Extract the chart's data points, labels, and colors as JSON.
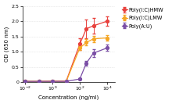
{
  "series": {
    "Poly(I:C)HMW": {
      "color": "#e8413c",
      "x": [
        0.01,
        0.1,
        1,
        10,
        100,
        300,
        1000,
        10000
      ],
      "y": [
        0.02,
        0.02,
        0.03,
        0.03,
        1.25,
        1.75,
        1.85,
        2.0
      ],
      "yerr": [
        0.01,
        0.01,
        0.01,
        0.01,
        0.2,
        0.3,
        0.25,
        0.15
      ]
    },
    "Poly(I:C)LMW": {
      "color": "#f5a623",
      "x": [
        0.01,
        0.1,
        1,
        10,
        100,
        300,
        1000,
        10000
      ],
      "y": [
        0.02,
        0.02,
        0.02,
        0.02,
        1.12,
        1.3,
        1.42,
        1.45
      ],
      "yerr": [
        0.01,
        0.01,
        0.01,
        0.01,
        0.08,
        0.1,
        0.1,
        0.1
      ]
    },
    "Poly(A:U)": {
      "color": "#7b4fa6",
      "x": [
        0.01,
        0.1,
        1,
        10,
        100,
        300,
        1000,
        10000
      ],
      "y": [
        0.02,
        0.02,
        0.02,
        0.02,
        0.1,
        0.62,
        0.95,
        1.12
      ],
      "yerr": [
        0.01,
        0.01,
        0.01,
        0.01,
        0.02,
        0.08,
        0.12,
        0.1
      ]
    }
  },
  "xlabel": "Concentration (ng/ml)",
  "ylabel": "OD (650 nm)",
  "ylim": [
    0,
    2.5
  ],
  "yticks": [
    0,
    0.5,
    1.0,
    1.5,
    2.0,
    2.5
  ],
  "xlim": [
    0.006,
    40000
  ],
  "legend_labels": [
    "Poly(I:C)HMW",
    "Poly(I:C)LMW",
    "Poly(A:U)"
  ],
  "marker": "o",
  "markersize": 2.8,
  "linewidth": 0.9,
  "capsize": 1.5,
  "elinewidth": 0.7,
  "fontsize_axis": 5.0,
  "fontsize_tick": 4.5,
  "fontsize_legend": 4.8,
  "background": "#ffffff"
}
